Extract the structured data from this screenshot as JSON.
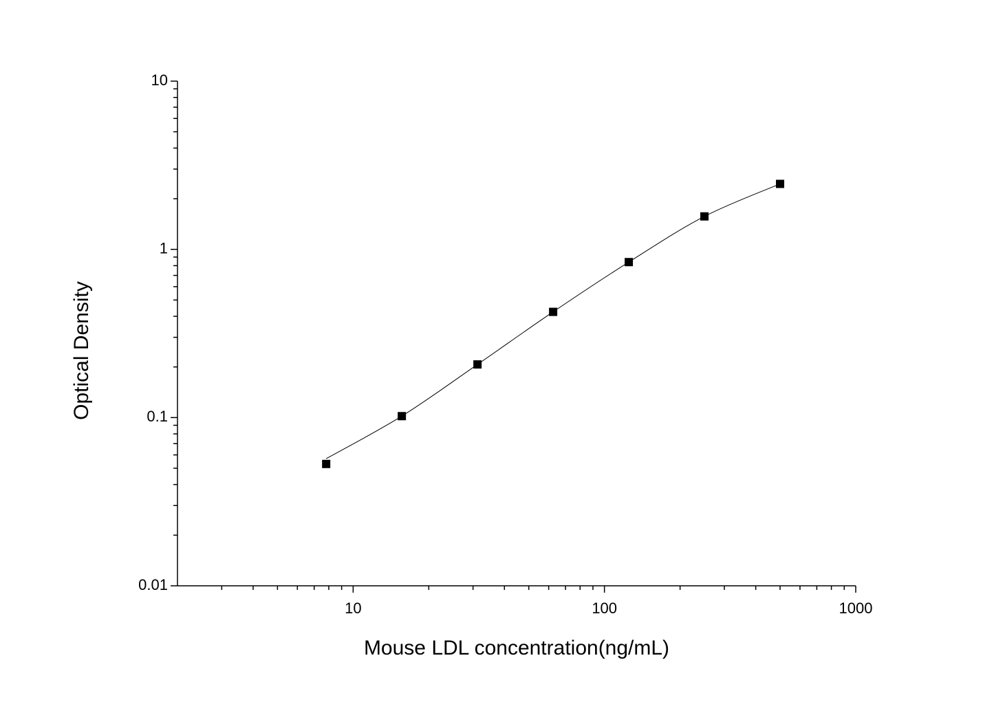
{
  "chart_data": {
    "type": "scatter",
    "x_label": "Mouse LDL concentration(ng/mL)",
    "y_label": "Optical Density",
    "x": [
      7.8125,
      15.625,
      31.25,
      62.5,
      125,
      250,
      500
    ],
    "series": [
      {
        "mode": "markers",
        "marker": "square",
        "color": "#000000",
        "values": [
          0.053,
          0.102,
          0.207,
          0.425,
          0.84,
          1.57,
          2.45
        ]
      },
      {
        "mode": "line",
        "color": "#000000",
        "values": [
          0.057,
          0.102,
          0.207,
          0.425,
          0.84,
          1.57,
          2.45
        ]
      }
    ],
    "xscale": "log",
    "yscale": "log",
    "xlim": [
      2,
      1000
    ],
    "ylim": [
      0.01,
      10
    ],
    "xticks": [
      10,
      100,
      1000
    ],
    "yticks": [
      0.01,
      0.1,
      1,
      10
    ],
    "xminorticks": [
      3,
      4,
      5,
      6,
      7,
      8,
      9,
      20,
      30,
      40,
      50,
      60,
      70,
      80,
      90,
      200,
      300,
      400,
      500,
      600,
      700,
      800,
      900
    ],
    "yminorticks": [
      0.02,
      0.03,
      0.04,
      0.05,
      0.06,
      0.07,
      0.08,
      0.09,
      0.2,
      0.3,
      0.4,
      0.5,
      0.6,
      0.7,
      0.8,
      0.9,
      2,
      3,
      4,
      5,
      6,
      7,
      8,
      9
    ],
    "grid": false
  }
}
